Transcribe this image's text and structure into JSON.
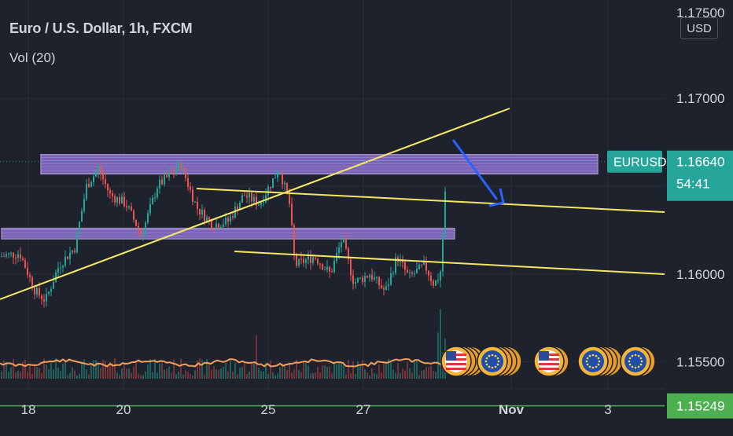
{
  "header": {
    "title": "Euro / U.S. Dollar, 1h, FXCM",
    "volume_indicator": "Vol (20)",
    "currency_button": "USD"
  },
  "price_axis": {
    "top_partial_label": "1.17500",
    "ticks": [
      {
        "value": 1.17,
        "label": "1.17000"
      },
      {
        "value": 1.16,
        "label": "1.16000"
      },
      {
        "value": 1.155,
        "label": "1.15500"
      }
    ],
    "symbol_tag": {
      "symbol": "EURUSD",
      "price": "1.16640",
      "countdown": "54:41",
      "color": "#26a69a"
    },
    "green_level_tag": {
      "value": 1.15249,
      "label": "1.15249",
      "color": "#4caf50"
    }
  },
  "time_axis": {
    "ticks": [
      {
        "label": "18",
        "bold": false
      },
      {
        "label": "20",
        "bold": false
      },
      {
        "label": "25",
        "bold": false
      },
      {
        "label": "27",
        "bold": false
      },
      {
        "label": "Nov",
        "bold": true
      },
      {
        "label": "3",
        "bold": false
      }
    ]
  },
  "chart_data": {
    "type": "candlestick",
    "symbol": "EURUSD",
    "interval": "1h",
    "y_range": [
      1.151,
      1.1756
    ],
    "last_price": 1.1664,
    "zones": [
      {
        "name": "resistance-zone",
        "from": 1.1657,
        "to": 1.1668,
        "color": "#9c7be0"
      },
      {
        "name": "mid-zone",
        "from": 1.162,
        "to": 1.1626,
        "color": "#9c7be0"
      }
    ],
    "trendlines": [
      {
        "name": "rising-trendline",
        "color": "#f5e663"
      },
      {
        "name": "upper-channel-line",
        "color": "#f5e663"
      },
      {
        "name": "lower-channel-line",
        "color": "#f5e663"
      }
    ],
    "projection_arrow_color": "#2962ff",
    "horizontal_level": {
      "value": 1.15249,
      "color": "#4caf50"
    },
    "volume_ma_color": "#f0a05a",
    "colors": {
      "up": "#26a69a",
      "down": "#ef5350"
    },
    "event_icons": [
      "us-flag-icon",
      "eu-flag-icon",
      "us-flag-icon",
      "eu-flag-icon",
      "eu-flag-icon"
    ]
  }
}
